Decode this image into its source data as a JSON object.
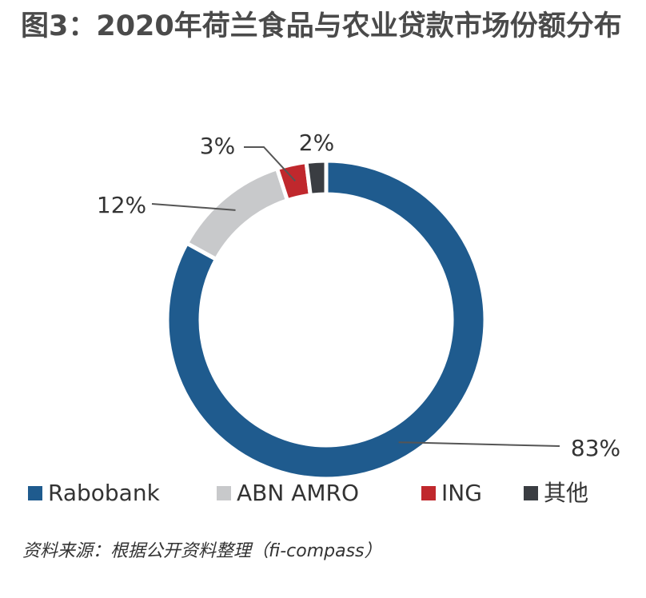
{
  "chart_data": {
    "type": "donut",
    "title": "图3：2020年荷兰食品与农业贷款市场份额分布",
    "source": "资料来源：根据公开资料整理（fi-compass）",
    "categories": [
      "Rabobank",
      "ABN AMRO",
      "ING",
      "其他"
    ],
    "values": [
      83,
      12,
      3,
      2
    ],
    "value_labels": [
      "83%",
      "12%",
      "3%",
      "2%"
    ],
    "colors": [
      "#1f5b8e",
      "#c8c9cb",
      "#c0282d",
      "#3a3d42"
    ]
  }
}
